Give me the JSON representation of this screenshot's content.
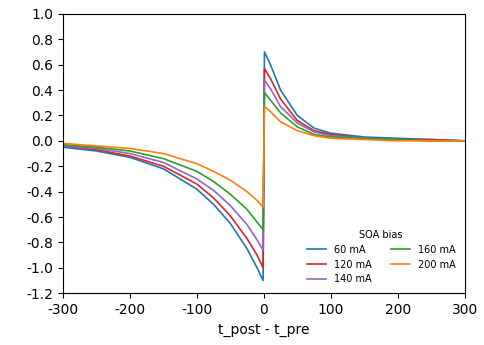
{
  "chart_data": {
    "type": "line",
    "x_label": "t_post - t_pre",
    "legend_title": "SOA bias",
    "legend": "lower right",
    "x": [
      -300,
      -250,
      -200,
      -150,
      -100,
      -75,
      -50,
      -25,
      -10,
      -1,
      1,
      10,
      25,
      50,
      75,
      100,
      150,
      200,
      250,
      300
    ],
    "xlim": [
      -300,
      300
    ],
    "xticks": [
      -300,
      -200,
      -100,
      0,
      100,
      200,
      300
    ],
    "ylim": [
      -1.2,
      1.0
    ],
    "yticks": [
      -1.2,
      -1.0,
      -0.8,
      -0.6,
      -0.4,
      -0.2,
      0.0,
      0.2,
      0.4,
      0.6,
      0.8,
      1.0
    ],
    "series": [
      {
        "name": "60 mA",
        "color": "#1f77b4",
        "values": [
          -0.05,
          -0.08,
          -0.13,
          -0.22,
          -0.38,
          -0.5,
          -0.65,
          -0.85,
          -1.0,
          -1.1,
          0.7,
          0.6,
          0.4,
          0.2,
          0.1,
          0.06,
          0.03,
          0.02,
          0.01,
          0.0
        ]
      },
      {
        "name": "120 mA",
        "color": "#d62728",
        "values": [
          -0.04,
          -0.07,
          -0.12,
          -0.2,
          -0.34,
          -0.45,
          -0.59,
          -0.77,
          -0.9,
          -1.0,
          0.57,
          0.49,
          0.33,
          0.16,
          0.08,
          0.05,
          0.02,
          0.01,
          0.01,
          0.0
        ]
      },
      {
        "name": "140 mA",
        "color": "#9467bd",
        "values": [
          -0.04,
          -0.06,
          -0.1,
          -0.17,
          -0.3,
          -0.39,
          -0.51,
          -0.66,
          -0.78,
          -0.86,
          0.48,
          0.41,
          0.27,
          0.14,
          0.07,
          0.04,
          0.02,
          0.01,
          0.0,
          0.0
        ]
      },
      {
        "name": "160 mA",
        "color": "#2ca02c",
        "values": [
          -0.03,
          -0.05,
          -0.08,
          -0.14,
          -0.24,
          -0.32,
          -0.42,
          -0.54,
          -0.64,
          -0.7,
          0.38,
          0.32,
          0.22,
          0.11,
          0.05,
          0.03,
          0.02,
          0.01,
          0.0,
          0.0
        ]
      },
      {
        "name": "200 mA",
        "color": "#ff7f0e",
        "values": [
          -0.02,
          -0.04,
          -0.06,
          -0.1,
          -0.18,
          -0.24,
          -0.31,
          -0.4,
          -0.47,
          -0.52,
          0.27,
          0.23,
          0.15,
          0.08,
          0.04,
          0.02,
          0.01,
          0.0,
          0.0,
          0.0
        ]
      }
    ]
  }
}
